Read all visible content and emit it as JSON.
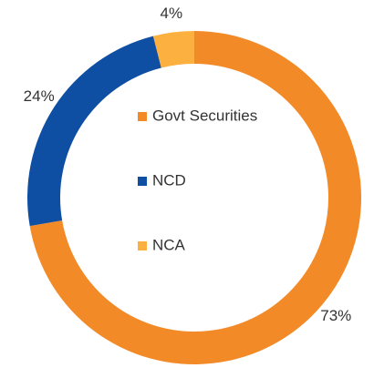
{
  "chart_data": {
    "type": "donut",
    "categories": [
      "Govt Securities",
      "NCD",
      "NCA"
    ],
    "values": [
      73,
      24,
      4
    ],
    "value_labels": [
      "73%",
      "24%",
      "4%"
    ],
    "colors": [
      "#f28a28",
      "#0f4fa3",
      "#fbb040"
    ],
    "legend": "center"
  }
}
